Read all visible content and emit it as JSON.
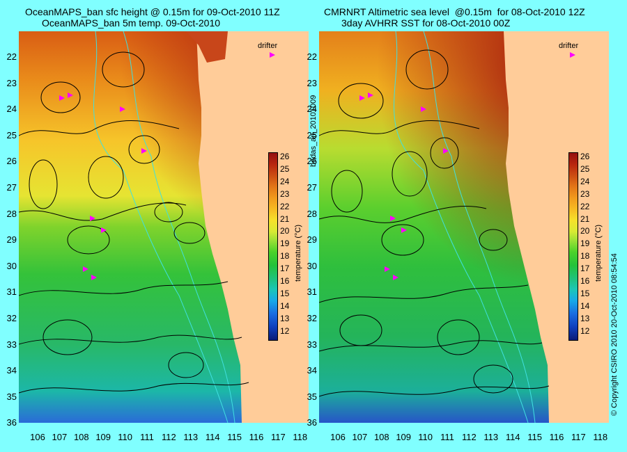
{
  "left_panel": {
    "title_line1": "OceanMAPS_ban sfc height @ 0.15m for 09-Oct-2010 11Z",
    "title_line2": "OceanMAPS_ban 5m temp. 09-Oct-2010",
    "legend_label": "drifter",
    "colorbar_title": "temperature (°C)"
  },
  "right_panel": {
    "title_line1": "CMRNRT Altimetric sea level  @0.15m  for 08-Oct-2010 12Z",
    "title_line2": "3day AVHRR SST for 08-Oct-2010 00Z",
    "legend_label": "drifter",
    "colorbar_title": "temperature (°C)"
  },
  "center_vertical_text": "bodas_an_20101009",
  "right_vertical_text": "© Copyright CSIRO 2010   20-Oct-2010 08:54:54",
  "latitude_ticks": [
    "22",
    "23",
    "24",
    "25",
    "26",
    "27",
    "28",
    "29",
    "30",
    "31",
    "32",
    "33",
    "34",
    "35",
    "36"
  ],
  "longitude_ticks": [
    "106",
    "107",
    "108",
    "109",
    "110",
    "111",
    "112",
    "113",
    "114",
    "115",
    "116",
    "117",
    "118"
  ],
  "colorbar_ticks": [
    "26",
    "25",
    "24",
    "23",
    "22",
    "21",
    "20",
    "19",
    "18",
    "17",
    "16",
    "15",
    "14",
    "13",
    "12"
  ],
  "colors": {
    "background": "#80ffff",
    "land": "#ffcc99",
    "drifter": "#ff00ff",
    "isobath": "#40e0e0"
  }
}
